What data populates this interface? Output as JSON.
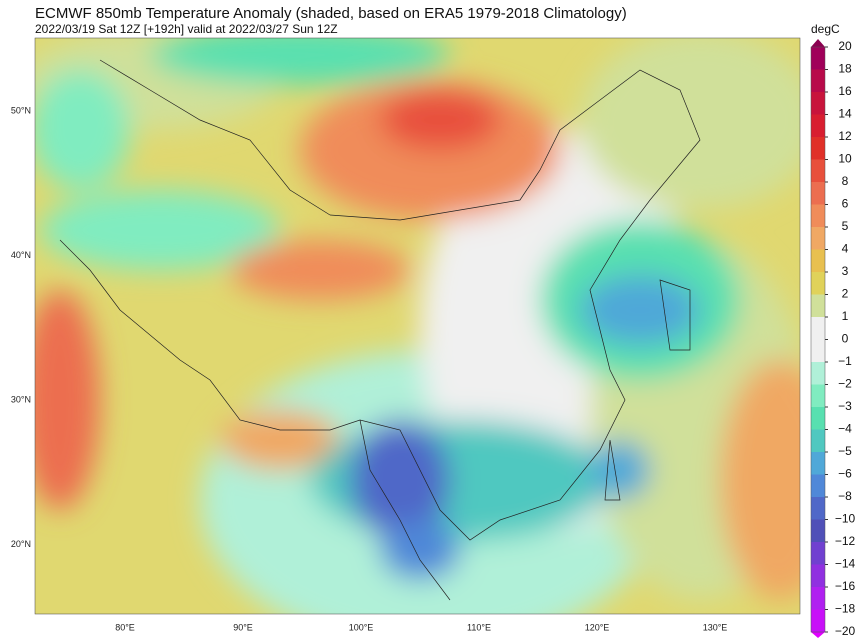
{
  "title": "ECMWF 850mb Temperature Anomaly (shaded, based on ERA5 1979-2018 Climatology)",
  "subtitle": "2022/03/19 Sat 12Z [+192h] valid at 2022/03/27 Sun 12Z",
  "map": {
    "lat_labels": [
      "50°N",
      "40°N",
      "30°N",
      "20°N"
    ],
    "lon_labels": [
      "80°E",
      "90°E",
      "100°E",
      "110°E",
      "120°E",
      "130°E"
    ]
  },
  "colorbar": {
    "unit": "degC",
    "levels": [
      20,
      18,
      16,
      14,
      12,
      10,
      8,
      6,
      5,
      4,
      3,
      2,
      1,
      0,
      {
        "value": -1,
        "label": "−1"
      },
      {
        "value": -2,
        "label": "−2"
      },
      {
        "value": -3,
        "label": "−3"
      },
      {
        "value": -4,
        "label": "−4"
      },
      {
        "value": -5,
        "label": "−5"
      },
      {
        "value": -6,
        "label": "−6"
      },
      {
        "value": -8,
        "label": "−8"
      },
      {
        "value": -10,
        "label": "−10"
      },
      {
        "value": -12,
        "label": "−12"
      },
      {
        "value": -14,
        "label": "−14"
      },
      {
        "value": -16,
        "label": "−16"
      },
      {
        "value": -18,
        "label": "−18"
      },
      {
        "value": -20,
        "label": "−20"
      }
    ],
    "colors": [
      "#a0005a",
      "#b80a4a",
      "#c8143c",
      "#d81e30",
      "#e03028",
      "#e8503c",
      "#ec6e50",
      "#f08c5a",
      "#f0a864",
      "#e8c050",
      "#e0d25a",
      "#d0e09a",
      "#f0f0f0",
      "#f0f0f0",
      "#b0f0d8",
      "#80ecc0",
      "#58e0b0",
      "#50c8c0",
      "#50a8d8",
      "#5088d8",
      "#5068c8",
      "#5050b8",
      "#7040d0",
      "#9030e0",
      "#b020f0",
      "#c810f8"
    ],
    "extend_colors": [
      "#8b0050",
      "#e000ff"
    ]
  }
}
